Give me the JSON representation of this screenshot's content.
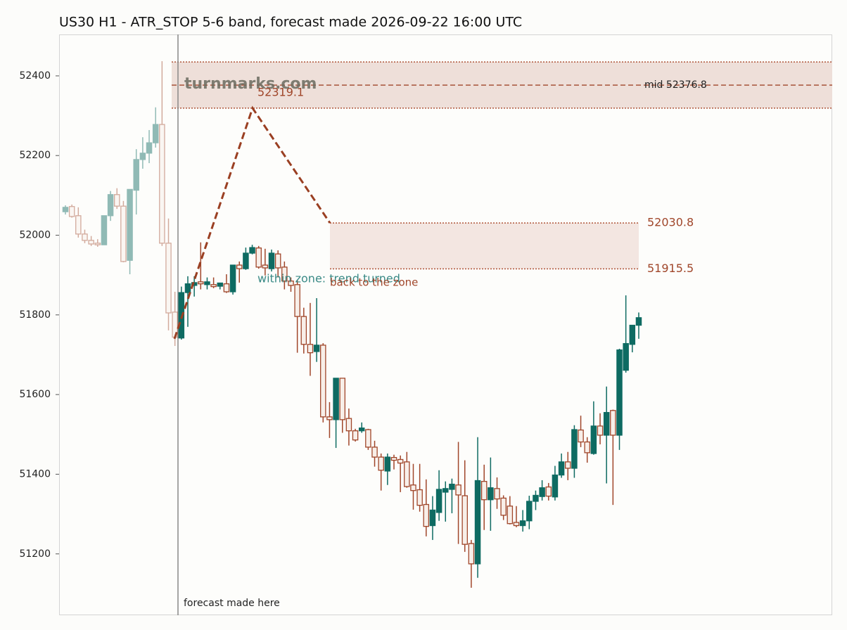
{
  "chart_data": {
    "type": "candlestick",
    "title": "US30 H1 - ATR_STOP 5-6 band, forecast made 2026-09-22 16:00 UTC",
    "ylim": [
      51046,
      52504
    ],
    "yticks": [
      51200,
      51400,
      51600,
      51800,
      52000,
      52200,
      52400
    ],
    "up_color": "#0e6b62",
    "down_color": "#a0462a",
    "candles_before": [
      {
        "o": 52059,
        "h": 52075,
        "l": 52052,
        "c": 52070
      },
      {
        "o": 52072,
        "h": 52077,
        "l": 52044,
        "c": 52047
      },
      {
        "o": 52049,
        "h": 52070,
        "l": 51994,
        "c": 52003
      },
      {
        "o": 52003,
        "h": 52014,
        "l": 51980,
        "c": 51987
      },
      {
        "o": 51987,
        "h": 51998,
        "l": 51973,
        "c": 51978
      },
      {
        "o": 51980,
        "h": 51990,
        "l": 51971,
        "c": 51976
      },
      {
        "o": 51976,
        "h": 52049,
        "l": 51976,
        "c": 52049
      },
      {
        "o": 52049,
        "h": 52111,
        "l": 52036,
        "c": 52102
      },
      {
        "o": 52102,
        "h": 52118,
        "l": 52066,
        "c": 52073
      },
      {
        "o": 52073,
        "h": 52086,
        "l": 51932,
        "c": 51934
      },
      {
        "o": 51937,
        "h": 52115,
        "l": 51902,
        "c": 52115
      },
      {
        "o": 52113,
        "h": 52216,
        "l": 52052,
        "c": 52190
      },
      {
        "o": 52190,
        "h": 52246,
        "l": 52167,
        "c": 52206
      },
      {
        "o": 52206,
        "h": 52264,
        "l": 52181,
        "c": 52232
      },
      {
        "o": 52232,
        "h": 52321,
        "l": 52220,
        "c": 52278
      },
      {
        "o": 52278,
        "h": 52437,
        "l": 51973,
        "c": 51980
      },
      {
        "o": 51980,
        "h": 52042,
        "l": 51761,
        "c": 51805
      },
      {
        "o": 51807,
        "h": 51858,
        "l": 51722,
        "c": 51744
      }
    ],
    "candles_after": [
      {
        "o": 51742,
        "h": 51871,
        "l": 51738,
        "c": 51856
      },
      {
        "o": 51856,
        "h": 51897,
        "l": 51770,
        "c": 51878
      },
      {
        "o": 51874,
        "h": 51897,
        "l": 51846,
        "c": 51881
      },
      {
        "o": 51883,
        "h": 51982,
        "l": 51864,
        "c": 51878
      },
      {
        "o": 51876,
        "h": 51894,
        "l": 51864,
        "c": 51883
      },
      {
        "o": 51876,
        "h": 51894,
        "l": 51867,
        "c": 51871
      },
      {
        "o": 51872,
        "h": 51880,
        "l": 51864,
        "c": 51880
      },
      {
        "o": 51878,
        "h": 51902,
        "l": 51855,
        "c": 51858
      },
      {
        "o": 51858,
        "h": 51925,
        "l": 51851,
        "c": 51925
      },
      {
        "o": 51925,
        "h": 51934,
        "l": 51881,
        "c": 51916
      },
      {
        "o": 51916,
        "h": 51969,
        "l": 51913,
        "c": 51955
      },
      {
        "o": 51955,
        "h": 51976,
        "l": 51952,
        "c": 51969
      },
      {
        "o": 51968,
        "h": 51973,
        "l": 51916,
        "c": 51920
      },
      {
        "o": 51925,
        "h": 51966,
        "l": 51899,
        "c": 51918
      },
      {
        "o": 51916,
        "h": 51964,
        "l": 51909,
        "c": 51955
      },
      {
        "o": 51953,
        "h": 51962,
        "l": 51894,
        "c": 51918
      },
      {
        "o": 51920,
        "h": 51934,
        "l": 51864,
        "c": 51885
      },
      {
        "o": 51885,
        "h": 51894,
        "l": 51858,
        "c": 51874
      },
      {
        "o": 51876,
        "h": 51888,
        "l": 51705,
        "c": 51796
      },
      {
        "o": 51796,
        "h": 51818,
        "l": 51703,
        "c": 51726
      },
      {
        "o": 51726,
        "h": 51830,
        "l": 51647,
        "c": 51705
      },
      {
        "o": 51708,
        "h": 51842,
        "l": 51682,
        "c": 51724
      },
      {
        "o": 51724,
        "h": 51729,
        "l": 51530,
        "c": 51544
      },
      {
        "o": 51544,
        "h": 51581,
        "l": 51491,
        "c": 51537
      },
      {
        "o": 51537,
        "h": 51641,
        "l": 51466,
        "c": 51641
      },
      {
        "o": 51641,
        "h": 51641,
        "l": 51504,
        "c": 51537
      },
      {
        "o": 51540,
        "h": 51565,
        "l": 51472,
        "c": 51509
      },
      {
        "o": 51509,
        "h": 51514,
        "l": 51482,
        "c": 51486
      },
      {
        "o": 51509,
        "h": 51530,
        "l": 51504,
        "c": 51516
      },
      {
        "o": 51512,
        "h": 51514,
        "l": 51461,
        "c": 51468
      },
      {
        "o": 51468,
        "h": 51484,
        "l": 51419,
        "c": 51443
      },
      {
        "o": 51443,
        "h": 51452,
        "l": 51359,
        "c": 51410
      },
      {
        "o": 51408,
        "h": 51452,
        "l": 51373,
        "c": 51443
      },
      {
        "o": 51442,
        "h": 51449,
        "l": 51412,
        "c": 51435
      },
      {
        "o": 51437,
        "h": 51447,
        "l": 51355,
        "c": 51428
      },
      {
        "o": 51431,
        "h": 51456,
        "l": 51366,
        "c": 51369
      },
      {
        "o": 51373,
        "h": 51426,
        "l": 51311,
        "c": 51359
      },
      {
        "o": 51361,
        "h": 51426,
        "l": 51306,
        "c": 51322
      },
      {
        "o": 51324,
        "h": 51387,
        "l": 51244,
        "c": 51269
      },
      {
        "o": 51271,
        "h": 51345,
        "l": 51235,
        "c": 51310
      },
      {
        "o": 51304,
        "h": 51410,
        "l": 51283,
        "c": 51362
      },
      {
        "o": 51355,
        "h": 51382,
        "l": 51281,
        "c": 51364
      },
      {
        "o": 51362,
        "h": 51389,
        "l": 51302,
        "c": 51375
      },
      {
        "o": 51373,
        "h": 51481,
        "l": 51225,
        "c": 51348
      },
      {
        "o": 51346,
        "h": 51435,
        "l": 51205,
        "c": 51224
      },
      {
        "o": 51226,
        "h": 51235,
        "l": 51115,
        "c": 51175
      },
      {
        "o": 51175,
        "h": 51493,
        "l": 51140,
        "c": 51384
      },
      {
        "o": 51382,
        "h": 51424,
        "l": 51260,
        "c": 51336
      },
      {
        "o": 51336,
        "h": 51442,
        "l": 51258,
        "c": 51366
      },
      {
        "o": 51364,
        "h": 51392,
        "l": 51313,
        "c": 51338
      },
      {
        "o": 51340,
        "h": 51347,
        "l": 51285,
        "c": 51297
      },
      {
        "o": 51320,
        "h": 51345,
        "l": 51274,
        "c": 51276
      },
      {
        "o": 51279,
        "h": 51320,
        "l": 51267,
        "c": 51271
      },
      {
        "o": 51271,
        "h": 51310,
        "l": 51256,
        "c": 51283
      },
      {
        "o": 51283,
        "h": 51346,
        "l": 51262,
        "c": 51332
      },
      {
        "o": 51332,
        "h": 51359,
        "l": 51310,
        "c": 51347
      },
      {
        "o": 51344,
        "h": 51385,
        "l": 51334,
        "c": 51366
      },
      {
        "o": 51368,
        "h": 51378,
        "l": 51334,
        "c": 51345
      },
      {
        "o": 51343,
        "h": 51421,
        "l": 51334,
        "c": 51398
      },
      {
        "o": 51398,
        "h": 51452,
        "l": 51391,
        "c": 51431
      },
      {
        "o": 51431,
        "h": 51456,
        "l": 51385,
        "c": 51415
      },
      {
        "o": 51415,
        "h": 51523,
        "l": 51391,
        "c": 51512
      },
      {
        "o": 51511,
        "h": 51547,
        "l": 51468,
        "c": 51481
      },
      {
        "o": 51481,
        "h": 51493,
        "l": 51429,
        "c": 51454
      },
      {
        "o": 51452,
        "h": 51583,
        "l": 51449,
        "c": 51521
      },
      {
        "o": 51521,
        "h": 51553,
        "l": 51475,
        "c": 51498
      },
      {
        "o": 51498,
        "h": 51620,
        "l": 51377,
        "c": 51555
      },
      {
        "o": 51560,
        "h": 51562,
        "l": 51323,
        "c": 51498
      },
      {
        "o": 51498,
        "h": 51715,
        "l": 51461,
        "c": 51712
      },
      {
        "o": 51661,
        "h": 51849,
        "l": 51655,
        "c": 51728
      },
      {
        "o": 51726,
        "h": 51774,
        "l": 51706,
        "c": 51774
      },
      {
        "o": 51774,
        "h": 51806,
        "l": 51740,
        "c": 51793
      }
    ],
    "upper_zone": {
      "low": 52319.1,
      "high": 52435,
      "mid": 52376.8,
      "mid_label": "mid 52376.8"
    },
    "lower_zone": {
      "low": 51915.5,
      "high": 52030.8
    },
    "forecast_path": {
      "values": [
        51740,
        52319.1,
        52030.8
      ],
      "color": "#9a3f22"
    },
    "watermark": "turnmarks.com",
    "notes": [
      "within zone: trend turned",
      "back to the zone",
      "forecast made here"
    ]
  }
}
